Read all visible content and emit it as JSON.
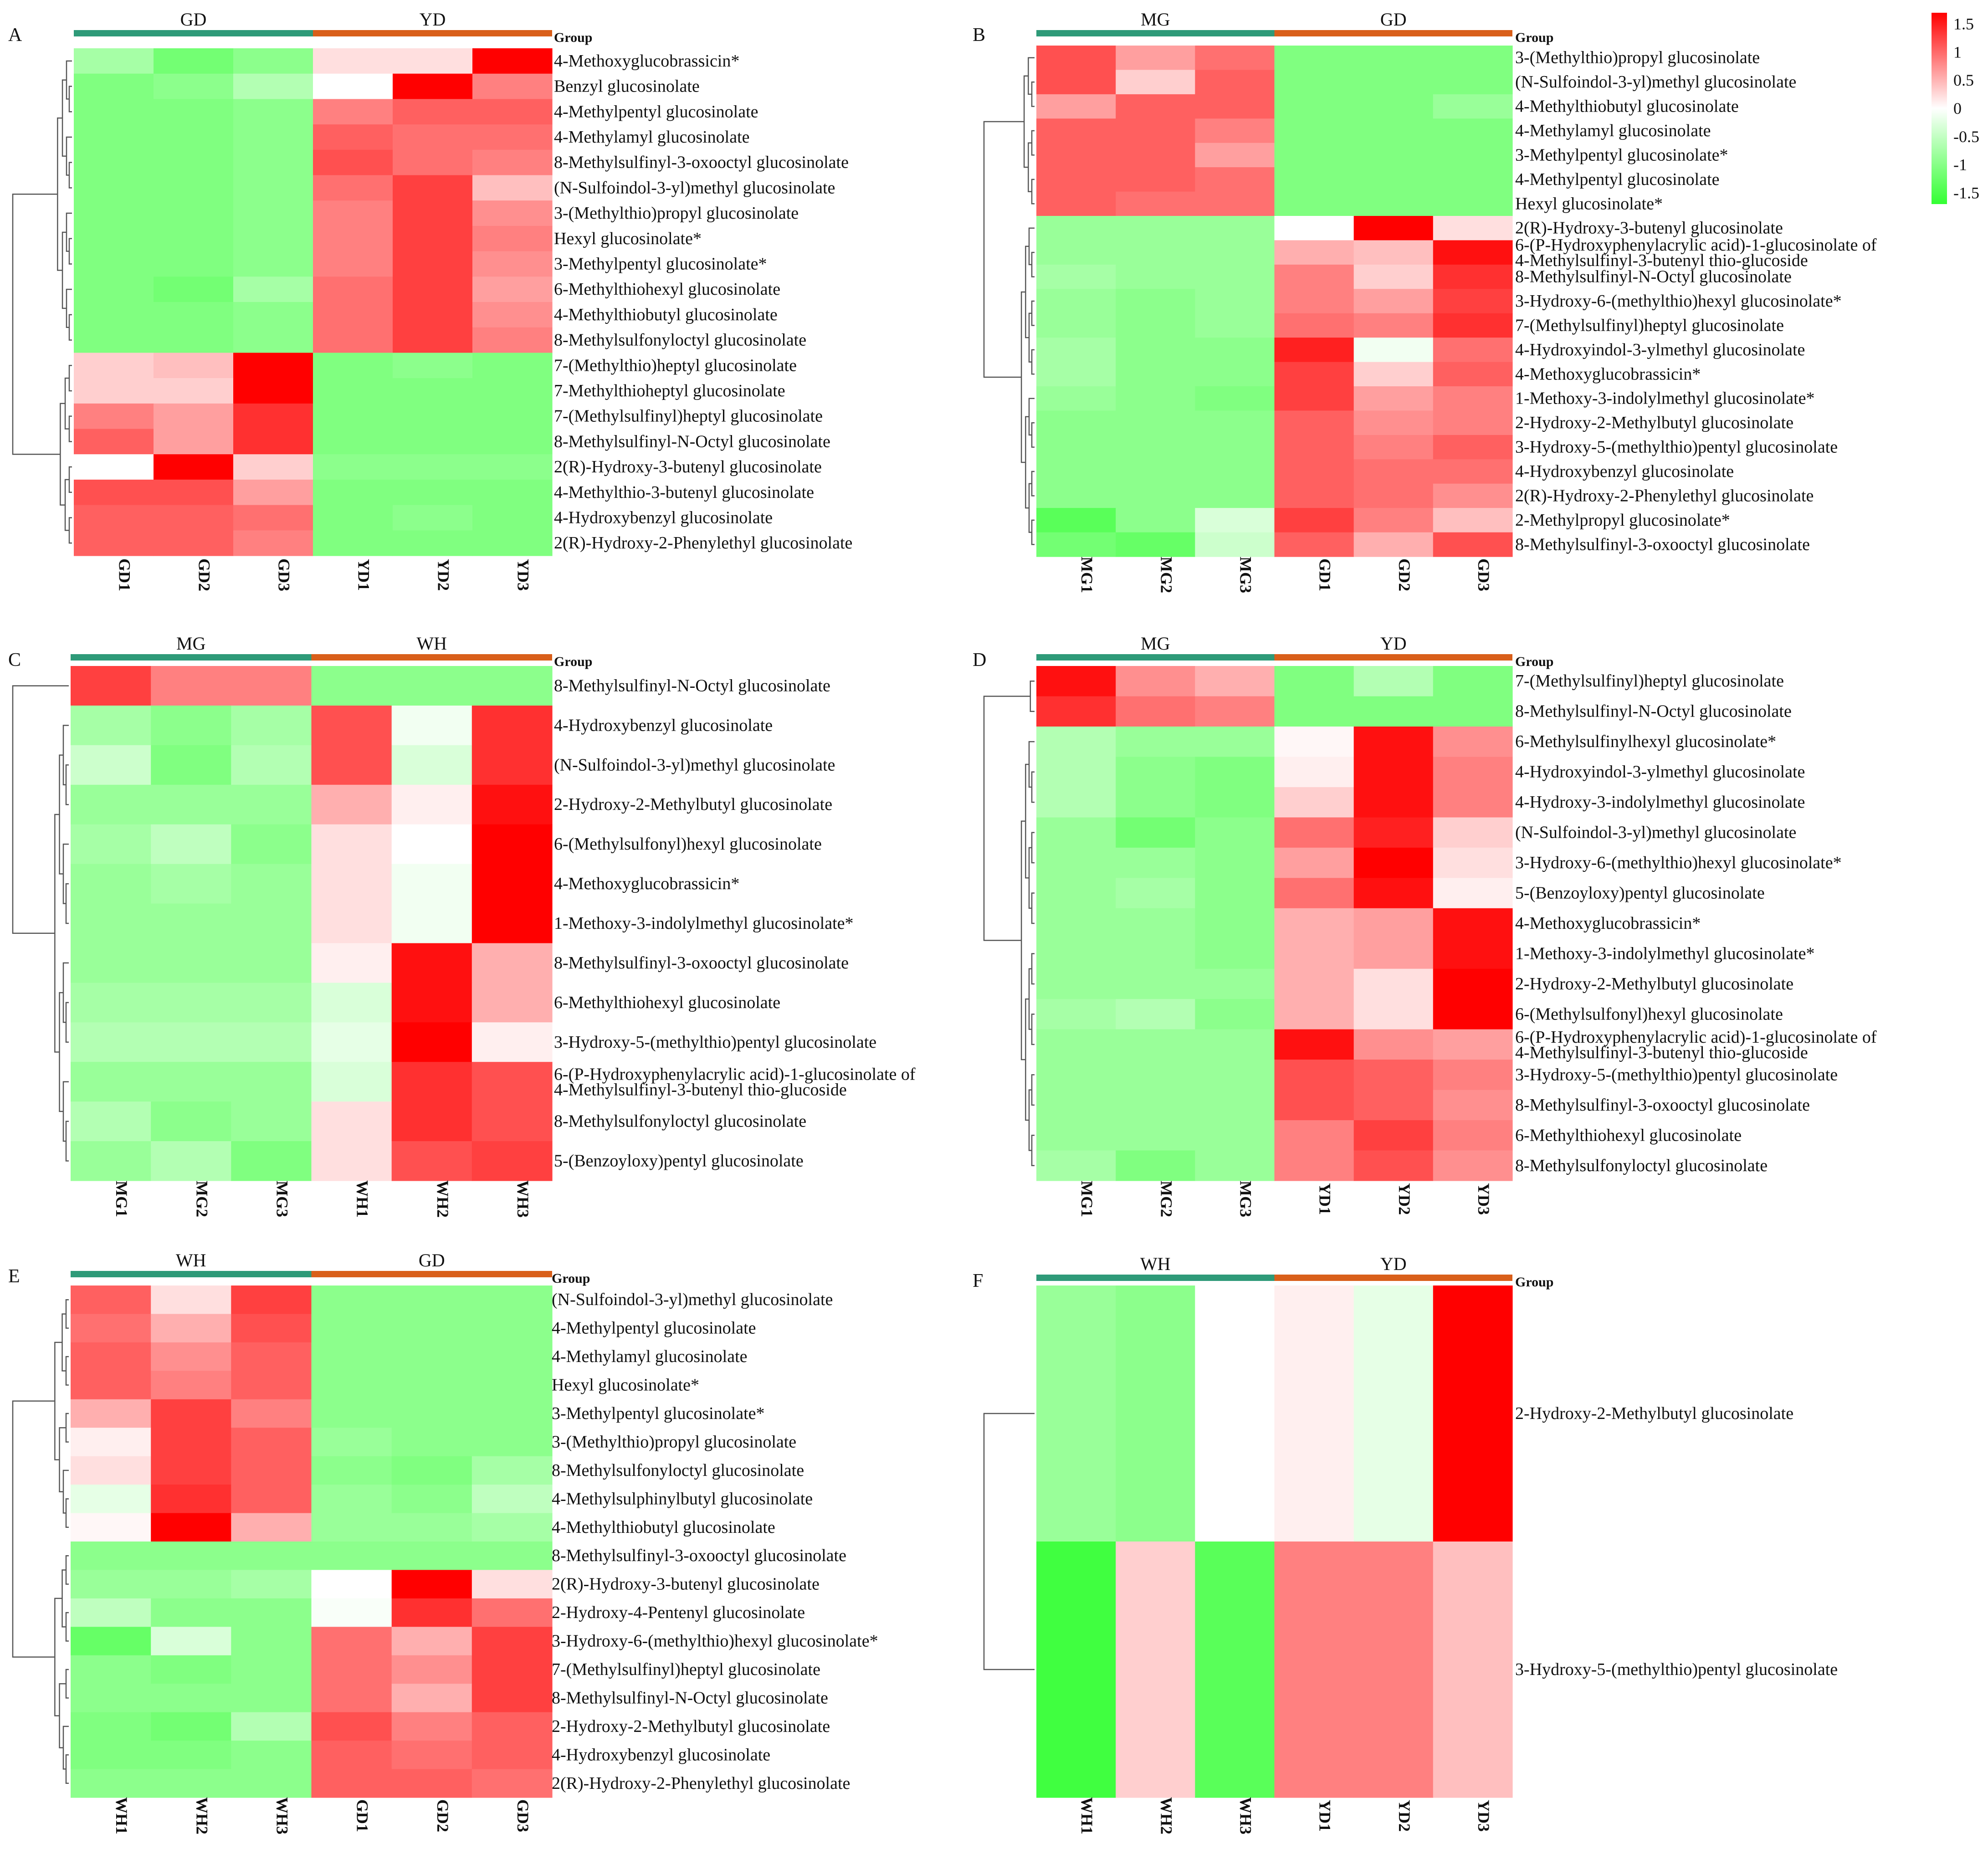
{
  "figure": {
    "colors": {
      "green": "#33ff33",
      "white": "#ffffff",
      "red": "#ff0000",
      "group1": "#2e9a78",
      "group2": "#d95f1a"
    }
  },
  "legend": {
    "ticks": [
      "1.5",
      "1",
      "0.5",
      "0",
      "-0.5",
      "-1",
      "-1.5"
    ],
    "min": -1.7,
    "max": 1.7
  },
  "chart_data": [
    {
      "type": "heatmap",
      "panel": "A",
      "group_title": "Group",
      "groups": [
        "GD",
        "YD"
      ],
      "columns": [
        "GD1",
        "GD2",
        "GD3",
        "YD1",
        "YD2",
        "YD3"
      ],
      "rows": [
        "4-Methoxyglucobrassicin*",
        "Benzyl glucosinolate",
        "4-Methylpentyl glucosinolate",
        "4-Methylamyl glucosinolate",
        "8-Methylsulfinyl-3-oxooctyl glucosinolate",
        "(N-Sulfoindol-3-yl)methyl glucosinolate",
        "3-(Methylthio)propyl glucosinolate",
        "Hexyl glucosinolate*",
        "3-Methylpentyl glucosinolate*",
        "6-Methylthiohexyl glucosinolate",
        "4-Methylthiobutyl glucosinolate",
        "8-Methylsulfonyloctyl glucosinolate",
        "7-(Methylthio)heptyl glucosinolate",
        "7-Methylthioheptyl glucosinolate",
        "7-(Methylsulfinyl)heptyl glucosinolate",
        "8-Methylsulfinyl-N-Octyl glucosinolate",
        "2(R)-Hydroxy-3-butenyl glucosinolate",
        "4-Methylthio-3-butenyl glucosinolate",
        "4-Hydroxybenzyl glucosinolate",
        "2(R)-Hydroxy-2-Phenylethyl glucosinolate"
      ],
      "values": [
        [
          -0.7,
          -1.1,
          -0.9,
          0.2,
          0.2,
          1.6
        ],
        [
          -1.0,
          -0.9,
          -0.6,
          0.0,
          1.6,
          0.8
        ],
        [
          -1.0,
          -1.0,
          -0.9,
          0.8,
          1.0,
          1.0
        ],
        [
          -1.0,
          -1.0,
          -0.9,
          1.0,
          0.9,
          0.9
        ],
        [
          -1.0,
          -1.0,
          -0.9,
          1.1,
          0.9,
          0.8
        ],
        [
          -1.0,
          -1.0,
          -0.9,
          0.9,
          1.2,
          0.4
        ],
        [
          -1.0,
          -1.0,
          -0.9,
          0.8,
          1.2,
          0.7
        ],
        [
          -1.0,
          -1.0,
          -0.9,
          0.8,
          1.2,
          0.8
        ],
        [
          -1.0,
          -1.0,
          -0.9,
          0.8,
          1.2,
          0.7
        ],
        [
          -1.0,
          -1.1,
          -0.7,
          0.9,
          1.2,
          0.6
        ],
        [
          -1.0,
          -1.0,
          -0.9,
          0.9,
          1.2,
          0.7
        ],
        [
          -1.0,
          -1.0,
          -0.9,
          0.9,
          1.2,
          0.8
        ],
        [
          0.3,
          0.4,
          1.6,
          -1.0,
          -0.9,
          -1.0
        ],
        [
          0.3,
          0.3,
          1.6,
          -1.0,
          -1.0,
          -1.0
        ],
        [
          0.8,
          0.6,
          1.3,
          -1.0,
          -1.0,
          -1.0
        ],
        [
          1.0,
          0.6,
          1.3,
          -1.0,
          -1.0,
          -1.0
        ],
        [
          0.0,
          1.6,
          0.3,
          -0.9,
          -0.9,
          -0.9
        ],
        [
          1.1,
          1.1,
          0.6,
          -1.0,
          -1.0,
          -1.0
        ],
        [
          1.0,
          1.0,
          0.9,
          -1.0,
          -0.9,
          -1.0
        ],
        [
          1.0,
          1.0,
          0.8,
          -1.0,
          -1.0,
          -1.0
        ]
      ]
    },
    {
      "type": "heatmap",
      "panel": "B",
      "group_title": "Group",
      "groups": [
        "MG",
        "GD"
      ],
      "columns": [
        "MG1",
        "MG2",
        "MG3",
        "GD1",
        "GD2",
        "GD3"
      ],
      "rows": [
        "3-(Methylthio)propyl glucosinolate",
        "(N-Sulfoindol-3-yl)methyl glucosinolate",
        "4-Methylthiobutyl glucosinolate",
        "4-Methylamyl glucosinolate",
        "3-Methylpentyl glucosinolate*",
        "4-Methylpentyl glucosinolate",
        "Hexyl glucosinolate*",
        "2(R)-Hydroxy-3-butenyl glucosinolate",
        "6-(P-Hydroxyphenylacrylic acid)-1-glucosinolate of 4-Methylsulfinyl-3-butenyl thio-glucoside",
        "8-Methylsulfinyl-N-Octyl glucosinolate",
        "3-Hydroxy-6-(methylthio)hexyl glucosinolate*",
        "7-(Methylsulfinyl)heptyl glucosinolate",
        "4-Hydroxyindol-3-ylmethyl glucosinolate",
        "4-Methoxyglucobrassicin*",
        "1-Methoxy-3-indolylmethyl glucosinolate*",
        "2-Hydroxy-2-Methylbutyl glucosinolate",
        "3-Hydroxy-5-(methylthio)pentyl glucosinolate",
        "4-Hydroxybenzyl glucosinolate",
        "2(R)-Hydroxy-2-Phenylethyl glucosinolate",
        "2-Methylpropyl glucosinolate*",
        "8-Methylsulfinyl-3-oxooctyl glucosinolate"
      ],
      "values": [
        [
          1.1,
          0.6,
          0.9,
          -1.0,
          -1.0,
          -1.0
        ],
        [
          1.1,
          0.3,
          1.0,
          -1.0,
          -1.0,
          -1.0
        ],
        [
          0.6,
          1.0,
          1.0,
          -1.0,
          -1.0,
          -0.8
        ],
        [
          1.0,
          1.0,
          0.8,
          -1.0,
          -1.0,
          -1.0
        ],
        [
          1.0,
          1.0,
          0.6,
          -1.0,
          -1.0,
          -1.0
        ],
        [
          1.0,
          1.0,
          0.9,
          -1.0,
          -1.0,
          -1.0
        ],
        [
          1.0,
          0.9,
          0.9,
          -1.0,
          -1.0,
          -1.0
        ],
        [
          -0.8,
          -0.8,
          -0.8,
          0.0,
          1.6,
          0.2
        ],
        [
          -0.8,
          -0.8,
          -0.8,
          0.5,
          0.4,
          1.5
        ],
        [
          -0.7,
          -0.8,
          -0.8,
          0.8,
          0.3,
          1.3
        ],
        [
          -0.8,
          -0.9,
          -0.8,
          0.8,
          0.6,
          1.2
        ],
        [
          -0.8,
          -0.9,
          -0.8,
          0.9,
          0.8,
          1.3
        ],
        [
          -0.7,
          -0.9,
          -0.9,
          1.4,
          -0.1,
          0.9
        ],
        [
          -0.7,
          -0.9,
          -0.9,
          1.2,
          0.3,
          1.0
        ],
        [
          -0.8,
          -0.9,
          -1.0,
          1.2,
          0.6,
          0.8
        ],
        [
          -0.9,
          -0.9,
          -0.9,
          1.0,
          0.7,
          0.8
        ],
        [
          -0.9,
          -0.9,
          -0.9,
          1.0,
          0.8,
          1.0
        ],
        [
          -0.9,
          -0.9,
          -0.9,
          1.0,
          0.9,
          0.9
        ],
        [
          -0.9,
          -0.9,
          -0.9,
          1.0,
          0.9,
          0.7
        ],
        [
          -1.3,
          -0.9,
          -0.3,
          1.2,
          0.8,
          0.4
        ],
        [
          -1.1,
          -1.2,
          -0.4,
          1.0,
          0.5,
          1.1
        ]
      ]
    },
    {
      "type": "heatmap",
      "panel": "C",
      "group_title": "Group",
      "groups": [
        "MG",
        "WH"
      ],
      "columns": [
        "MG1",
        "MG2",
        "MG3",
        "WH1",
        "WH2",
        "WH3"
      ],
      "rows": [
        "8-Methylsulfinyl-N-Octyl glucosinolate",
        "4-Hydroxybenzyl glucosinolate",
        "(N-Sulfoindol-3-yl)methyl glucosinolate",
        "2-Hydroxy-2-Methylbutyl glucosinolate",
        "6-(Methylsulfonyl)hexyl glucosinolate",
        "4-Methoxyglucobrassicin*",
        "1-Methoxy-3-indolylmethyl glucosinolate*",
        "8-Methylsulfinyl-3-oxooctyl glucosinolate",
        "6-Methylthiohexyl glucosinolate",
        "3-Hydroxy-5-(methylthio)pentyl glucosinolate",
        "6-(P-Hydroxyphenylacrylic acid)-1-glucosinolate of 4-Methylsulfinyl-3-butenyl thio-glucoside",
        "8-Methylsulfonyloctyl glucosinolate",
        "5-(Benzoyloxy)pentyl glucosinolate"
      ],
      "values": [
        [
          1.2,
          0.8,
          0.8,
          -0.9,
          -0.9,
          -0.9
        ],
        [
          -0.7,
          -0.9,
          -0.7,
          1.1,
          -0.1,
          1.3
        ],
        [
          -0.4,
          -1.0,
          -0.6,
          1.1,
          -0.3,
          1.3
        ],
        [
          -0.8,
          -0.8,
          -0.8,
          0.5,
          0.1,
          1.5
        ],
        [
          -0.7,
          -0.5,
          -0.9,
          0.2,
          0.0,
          1.6
        ],
        [
          -0.8,
          -0.7,
          -0.8,
          0.2,
          -0.1,
          1.6
        ],
        [
          -0.8,
          -0.8,
          -0.8,
          0.2,
          -0.1,
          1.6
        ],
        [
          -0.8,
          -0.8,
          -0.8,
          0.1,
          1.5,
          0.5
        ],
        [
          -0.7,
          -0.7,
          -0.7,
          -0.3,
          1.5,
          0.5
        ],
        [
          -0.6,
          -0.6,
          -0.6,
          -0.2,
          1.6,
          0.1
        ],
        [
          -0.8,
          -0.8,
          -0.8,
          -0.3,
          1.3,
          1.1
        ],
        [
          -0.6,
          -0.9,
          -0.8,
          0.2,
          1.3,
          1.1
        ],
        [
          -0.8,
          -0.6,
          -1.0,
          0.2,
          1.1,
          1.2
        ]
      ]
    },
    {
      "type": "heatmap",
      "panel": "D",
      "group_title": "Group",
      "groups": [
        "MG",
        "YD"
      ],
      "columns": [
        "MG1",
        "MG2",
        "MG3",
        "YD1",
        "YD2",
        "YD3"
      ],
      "rows": [
        "7-(Methylsulfinyl)heptyl glucosinolate",
        "8-Methylsulfinyl-N-Octyl glucosinolate",
        "6-Methylsulfinylhexyl glucosinolate*",
        "4-Hydroxyindol-3-ylmethyl glucosinolate",
        "4-Hydroxy-3-indolylmethyl glucosinolate",
        "(N-Sulfoindol-3-yl)methyl glucosinolate",
        "3-Hydroxy-6-(methylthio)hexyl glucosinolate*",
        "5-(Benzoyloxy)pentyl glucosinolate",
        "4-Methoxyglucobrassicin*",
        "1-Methoxy-3-indolylmethyl glucosinolate*",
        "2-Hydroxy-2-Methylbutyl glucosinolate",
        "6-(Methylsulfonyl)hexyl glucosinolate",
        "6-(P-Hydroxyphenylacrylic acid)-1-glucosinolate of 4-Methylsulfinyl-3-butenyl thio-glucoside",
        "3-Hydroxy-5-(methylthio)pentyl glucosinolate",
        "8-Methylsulfinyl-3-oxooctyl glucosinolate",
        "6-Methylthiohexyl glucosinolate",
        "8-Methylsulfonyloctyl glucosinolate"
      ],
      "values": [
        [
          1.5,
          0.7,
          0.5,
          -1.0,
          -0.6,
          -1.0
        ],
        [
          1.3,
          0.9,
          0.8,
          -1.0,
          -1.0,
          -1.0
        ],
        [
          -0.6,
          -0.8,
          -0.8,
          0.05,
          1.5,
          0.7
        ],
        [
          -0.6,
          -0.9,
          -1.0,
          0.1,
          1.5,
          0.8
        ],
        [
          -0.6,
          -0.9,
          -1.0,
          0.3,
          1.5,
          0.8
        ],
        [
          -0.8,
          -1.1,
          -0.9,
          0.9,
          1.4,
          0.3
        ],
        [
          -0.8,
          -0.8,
          -0.9,
          0.6,
          1.6,
          0.2
        ],
        [
          -0.8,
          -0.7,
          -0.9,
          0.9,
          1.5,
          0.1
        ],
        [
          -0.8,
          -0.8,
          -0.9,
          0.5,
          0.6,
          1.5
        ],
        [
          -0.8,
          -0.8,
          -0.9,
          0.5,
          0.6,
          1.5
        ],
        [
          -0.8,
          -0.8,
          -0.8,
          0.5,
          0.2,
          1.6
        ],
        [
          -0.7,
          -0.6,
          -0.9,
          0.5,
          0.2,
          1.6
        ],
        [
          -0.8,
          -0.8,
          -0.8,
          1.5,
          0.7,
          0.6
        ],
        [
          -0.8,
          -0.8,
          -0.8,
          1.1,
          1.0,
          0.8
        ],
        [
          -0.8,
          -0.8,
          -0.8,
          1.1,
          1.0,
          0.7
        ],
        [
          -0.8,
          -0.8,
          -0.8,
          0.8,
          1.2,
          0.8
        ],
        [
          -0.7,
          -1.0,
          -0.8,
          0.8,
          1.1,
          0.7
        ]
      ]
    },
    {
      "type": "heatmap",
      "panel": "E",
      "group_title": "Group",
      "groups": [
        "WH",
        "GD"
      ],
      "columns": [
        "WH1",
        "WH2",
        "WH3",
        "GD1",
        "GD2",
        "GD3"
      ],
      "rows": [
        "(N-Sulfoindol-3-yl)methyl glucosinolate",
        "4-Methylpentyl glucosinolate",
        "4-Methylamyl glucosinolate",
        "Hexyl glucosinolate*",
        "3-Methylpentyl glucosinolate*",
        "3-(Methylthio)propyl glucosinolate",
        "8-Methylsulfonyloctyl glucosinolate",
        "4-Methylsulphinylbutyl glucosinolate",
        "4-Methylthiobutyl glucosinolate",
        "8-Methylsulfinyl-3-oxooctyl glucosinolate",
        "2(R)-Hydroxy-3-butenyl glucosinolate",
        "2-Hydroxy-4-Pentenyl glucosinolate",
        "3-Hydroxy-6-(methylthio)hexyl glucosinolate*",
        "7-(Methylsulfinyl)heptyl glucosinolate",
        "8-Methylsulfinyl-N-Octyl glucosinolate",
        "2-Hydroxy-2-Methylbutyl glucosinolate",
        "4-Hydroxybenzyl glucosinolate",
        "2(R)-Hydroxy-2-Phenylethyl glucosinolate"
      ],
      "values": [
        [
          1.0,
          0.2,
          1.2,
          -0.9,
          -0.9,
          -0.9
        ],
        [
          0.9,
          0.5,
          1.1,
          -0.9,
          -0.9,
          -0.9
        ],
        [
          1.0,
          0.7,
          1.0,
          -0.9,
          -0.9,
          -0.9
        ],
        [
          1.0,
          0.8,
          1.0,
          -0.9,
          -0.9,
          -0.9
        ],
        [
          0.5,
          1.2,
          0.8,
          -0.9,
          -0.9,
          -0.9
        ],
        [
          0.1,
          1.2,
          1.0,
          -0.8,
          -0.9,
          -0.9
        ],
        [
          0.2,
          1.2,
          1.0,
          -0.9,
          -1.0,
          -0.7
        ],
        [
          -0.2,
          1.3,
          1.0,
          -0.8,
          -0.9,
          -0.5
        ],
        [
          0.05,
          1.6,
          0.5,
          -0.8,
          -0.8,
          -0.7
        ],
        [
          -0.9,
          -0.9,
          -0.9,
          -0.9,
          -0.9,
          -0.9
        ],
        [
          -0.8,
          -0.8,
          -0.7,
          0.0,
          1.6,
          0.2
        ],
        [
          -0.5,
          -0.9,
          -0.9,
          -0.05,
          1.3,
          0.9
        ],
        [
          -1.2,
          -0.3,
          -0.9,
          0.9,
          0.5,
          1.2
        ],
        [
          -0.9,
          -1.0,
          -0.9,
          0.9,
          0.7,
          1.2
        ],
        [
          -0.9,
          -0.9,
          -0.9,
          0.9,
          0.5,
          1.2
        ],
        [
          -1.0,
          -1.1,
          -0.6,
          1.1,
          0.8,
          1.0
        ],
        [
          -1.0,
          -1.0,
          -0.9,
          1.0,
          0.9,
          1.0
        ],
        [
          -0.9,
          -0.9,
          -0.9,
          1.0,
          1.0,
          0.9
        ]
      ]
    },
    {
      "type": "heatmap",
      "panel": "F",
      "group_title": "Group",
      "groups": [
        "WH",
        "YD"
      ],
      "columns": [
        "WH1",
        "WH2",
        "WH3",
        "YD1",
        "YD2",
        "YD3"
      ],
      "rows": [
        "2-Hydroxy-2-Methylbutyl glucosinolate",
        "3-Hydroxy-5-(methylthio)pentyl glucosinolate"
      ],
      "values": [
        [
          -0.8,
          -0.9,
          0.0,
          0.1,
          -0.2,
          1.6
        ],
        [
          -1.5,
          0.3,
          -1.3,
          0.8,
          0.8,
          0.4
        ]
      ]
    }
  ]
}
